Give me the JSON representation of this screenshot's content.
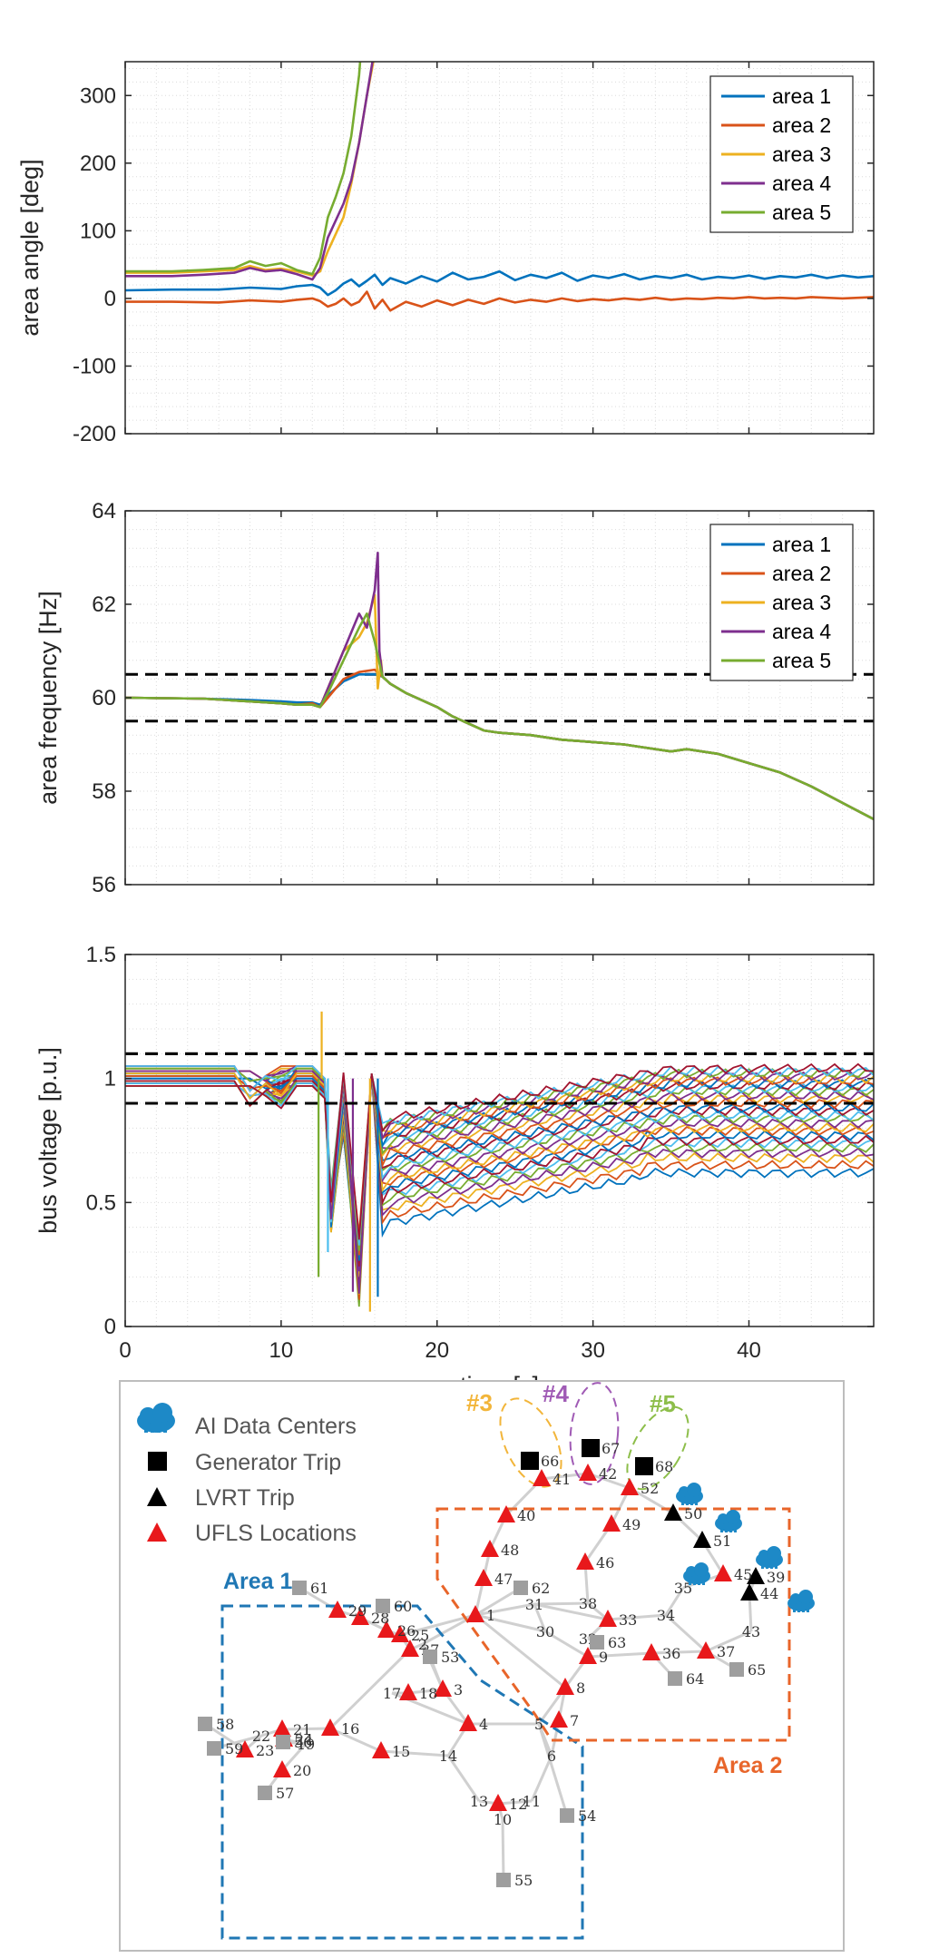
{
  "chart_data": [
    {
      "type": "line",
      "title": "",
      "ylabel": "area angle [deg]",
      "xlabel": "",
      "xlim": [
        0,
        48
      ],
      "ylim": [
        -200,
        350
      ],
      "yticks": [
        -200,
        -100,
        0,
        100,
        200,
        300
      ],
      "ytick_labels": [
        "-200",
        "-100",
        "0",
        "100",
        "200",
        "300"
      ],
      "xticks": [
        0,
        10,
        20,
        30,
        40
      ],
      "grid": "minor dotted",
      "legend_position": "top-right",
      "series": [
        {
          "name": "area 1",
          "color": "#0072BD",
          "x": [
            0,
            3,
            6,
            8,
            10,
            11,
            12,
            12.5,
            13,
            13.5,
            14,
            14.5,
            15,
            15.5,
            16,
            16.5,
            17,
            18,
            19,
            20,
            21,
            22,
            23,
            24,
            25,
            26,
            27,
            28,
            29,
            30,
            31,
            32,
            33,
            34,
            35,
            36,
            37,
            38,
            39,
            40,
            41,
            42,
            43,
            44,
            45,
            46,
            47,
            48
          ],
          "y": [
            12,
            13,
            13,
            16,
            14,
            18,
            20,
            16,
            5,
            12,
            22,
            28,
            18,
            26,
            35,
            20,
            30,
            22,
            33,
            25,
            38,
            28,
            32,
            40,
            27,
            35,
            30,
            38,
            26,
            34,
            30,
            36,
            28,
            33,
            30,
            35,
            28,
            32,
            30,
            34,
            29,
            33,
            31,
            35,
            30,
            34,
            31,
            33
          ]
        },
        {
          "name": "area 2",
          "color": "#D95319",
          "x": [
            0,
            3,
            6,
            8,
            10,
            11,
            12,
            12.5,
            13,
            13.5,
            14,
            14.5,
            15,
            15.5,
            16,
            16.5,
            17,
            18,
            19,
            20,
            21,
            22,
            23,
            24,
            25,
            26,
            27,
            28,
            29,
            30,
            31,
            32,
            33,
            34,
            35,
            36,
            37,
            38,
            39,
            40,
            41,
            42,
            43,
            44,
            45,
            46,
            47,
            48
          ],
          "y": [
            -5,
            -5,
            -6,
            -3,
            -5,
            -2,
            0,
            -4,
            -12,
            -8,
            0,
            -10,
            -5,
            10,
            -15,
            -2,
            -18,
            -5,
            -12,
            -3,
            -10,
            -2,
            -8,
            0,
            -6,
            -2,
            -5,
            0,
            -4,
            -1,
            -3,
            0,
            -2,
            1,
            -2,
            0,
            -1,
            1,
            0,
            2,
            0,
            1,
            0,
            2,
            1,
            0,
            1,
            2
          ]
        },
        {
          "name": "area 3",
          "color": "#EDB120",
          "x": [
            0,
            3,
            5,
            7,
            8,
            9,
            10,
            11,
            12,
            12.5,
            13,
            14,
            14.5,
            15,
            15.5,
            16,
            16.3
          ],
          "y": [
            38,
            38,
            40,
            42,
            48,
            42,
            44,
            40,
            34,
            40,
            70,
            120,
            170,
            230,
            300,
            360,
            420
          ]
        },
        {
          "name": "area 4",
          "color": "#7E2F8E",
          "x": [
            0,
            3,
            5,
            7,
            8,
            9,
            10,
            11,
            12,
            12.5,
            13,
            14,
            14.5,
            15,
            15.5,
            16,
            16.2
          ],
          "y": [
            33,
            33,
            35,
            38,
            45,
            40,
            42,
            36,
            28,
            45,
            90,
            140,
            175,
            230,
            300,
            370,
            420
          ]
        },
        {
          "name": "area 5",
          "color": "#77AC30",
          "x": [
            0,
            3,
            5,
            7,
            8,
            9,
            10,
            11,
            12,
            12.5,
            13,
            13.5,
            14,
            14.5,
            15,
            15.3
          ],
          "y": [
            40,
            40,
            42,
            45,
            55,
            48,
            52,
            42,
            36,
            60,
            120,
            150,
            185,
            240,
            330,
            420
          ]
        }
      ],
      "legend": [
        "area 1",
        "area 2",
        "area 3",
        "area 4",
        "area 5"
      ]
    },
    {
      "type": "line",
      "title": "",
      "ylabel": "area frequency [Hz]",
      "xlabel": "",
      "xlim": [
        0,
        48
      ],
      "ylim": [
        56,
        64
      ],
      "yticks": [
        56,
        58,
        60,
        62,
        64
      ],
      "ytick_labels": [
        "56",
        "58",
        "60",
        "62",
        "64"
      ],
      "xticks": [
        0,
        10,
        20,
        30,
        40
      ],
      "grid": "minor dotted",
      "legend_position": "top-right",
      "reference_lines": [
        60.5,
        59.5
      ],
      "common_path": {
        "x": [
          16.5,
          17,
          18,
          19,
          20,
          21,
          22,
          23,
          24,
          26,
          28,
          30,
          32,
          33,
          35,
          36,
          38,
          40,
          42,
          44,
          46,
          48
        ],
        "y": [
          60.45,
          60.3,
          60.1,
          59.95,
          59.8,
          59.6,
          59.45,
          59.3,
          59.25,
          59.2,
          59.1,
          59.05,
          59.0,
          58.95,
          58.85,
          58.9,
          58.8,
          58.6,
          58.4,
          58.1,
          57.75,
          57.4
        ]
      },
      "series": [
        {
          "name": "area 1",
          "color": "#0072BD",
          "x": [
            0,
            5,
            8,
            10,
            11,
            12,
            12.5,
            13,
            14,
            15,
            16,
            16.5
          ],
          "y": [
            60,
            59.98,
            59.95,
            59.92,
            59.9,
            59.9,
            59.85,
            60.05,
            60.35,
            60.5,
            60.5,
            60.45
          ]
        },
        {
          "name": "area 2",
          "color": "#D95319",
          "x": [
            0,
            5,
            8,
            10,
            11,
            12,
            12.5,
            13,
            14,
            15,
            16,
            16.5
          ],
          "y": [
            60,
            59.98,
            59.92,
            59.88,
            59.85,
            59.88,
            59.8,
            60.0,
            60.4,
            60.55,
            60.6,
            60.45
          ]
        },
        {
          "name": "area 3",
          "color": "#EDB120",
          "x": [
            0,
            5,
            8,
            10,
            11,
            12,
            12.5,
            13,
            14,
            15,
            15.5,
            16,
            16.2,
            16.4,
            16.5
          ],
          "y": [
            60,
            59.98,
            59.92,
            59.88,
            59.85,
            59.85,
            59.8,
            60.2,
            61.0,
            61.3,
            61.6,
            62.2,
            60.2,
            60.8,
            60.45
          ]
        },
        {
          "name": "area 4",
          "color": "#7E2F8E",
          "x": [
            0,
            5,
            8,
            10,
            11,
            12,
            12.5,
            13,
            14,
            15,
            15.5,
            16,
            16.2,
            16.3,
            16.5
          ],
          "y": [
            60,
            59.98,
            59.92,
            59.88,
            59.85,
            59.85,
            59.8,
            60.2,
            61.0,
            61.8,
            61.5,
            62.3,
            63.1,
            61.0,
            60.45
          ]
        },
        {
          "name": "area 5",
          "color": "#77AC30",
          "x": [
            0,
            5,
            8,
            10,
            11,
            12,
            12.5,
            13,
            14,
            15,
            15.5,
            16,
            16.5
          ],
          "y": [
            60,
            59.98,
            59.92,
            59.88,
            59.85,
            59.85,
            59.8,
            60.1,
            60.8,
            61.5,
            61.8,
            61.2,
            60.45
          ]
        }
      ],
      "legend": [
        "area 1",
        "area 2",
        "area 3",
        "area 4",
        "area 5"
      ]
    },
    {
      "type": "line",
      "title": "",
      "ylabel": "bus voltage [p.u.]",
      "xlabel": "time [s]",
      "xlim": [
        0,
        48
      ],
      "ylim": [
        0,
        1.5
      ],
      "yticks": [
        0,
        0.5,
        1,
        1.5
      ],
      "ytick_labels": [
        "0",
        "0.5",
        "1",
        "1.5"
      ],
      "xticks": [
        0,
        10,
        20,
        30,
        40
      ],
      "xtick_labels": [
        "0",
        "10",
        "20",
        "30",
        "40"
      ],
      "grid": "minor dotted",
      "reference_lines": [
        1.1,
        0.9
      ],
      "bus_final_voltages": [
        0.62,
        0.65,
        0.68,
        0.7,
        0.72,
        0.74,
        0.75,
        0.77,
        0.79,
        0.8,
        0.82,
        0.84,
        0.85,
        0.87,
        0.88,
        0.9,
        0.92,
        0.93,
        0.95,
        0.96,
        0.97,
        0.98,
        0.99,
        1.0,
        1.01,
        1.02,
        1.03,
        1.04
      ]
    }
  ],
  "diagram": {
    "legend": [
      {
        "label": "AI Data Centers",
        "icon": "cloud-datacenter-icon"
      },
      {
        "label": "Generator Trip",
        "icon": "black-square-icon"
      },
      {
        "label": "LVRT Trip",
        "icon": "black-triangle-icon"
      },
      {
        "label": "UFLS Locations",
        "icon": "red-triangle-icon"
      }
    ],
    "area1_label": "Area 1",
    "area2_label": "Area 2",
    "group3_label": "#3",
    "group4_label": "#4",
    "group5_label": "#5",
    "colors": {
      "area1": "#1F77B4",
      "area2": "#E8652A",
      "g3": "#F2B53A",
      "g4": "#A05BB5",
      "g5": "#8DBE4A",
      "ufls": "#E8181B",
      "gen": "#9E9E9E"
    },
    "bus_labels": [
      "1",
      "2",
      "3",
      "4",
      "5",
      "6",
      "7",
      "8",
      "9",
      "10",
      "11",
      "12",
      "13",
      "14",
      "15",
      "16",
      "17",
      "18",
      "19",
      "20",
      "21",
      "22",
      "23",
      "24",
      "25",
      "26",
      "27",
      "28",
      "29",
      "30",
      "31",
      "32",
      "33",
      "34",
      "35",
      "36",
      "37",
      "38",
      "39",
      "40",
      "41",
      "42",
      "43",
      "44",
      "45",
      "46",
      "47",
      "48",
      "49",
      "50",
      "51",
      "52",
      "53",
      "54",
      "55",
      "56",
      "57",
      "58",
      "59",
      "60",
      "61",
      "62",
      "63",
      "64",
      "65",
      "66",
      "67",
      "68"
    ]
  }
}
